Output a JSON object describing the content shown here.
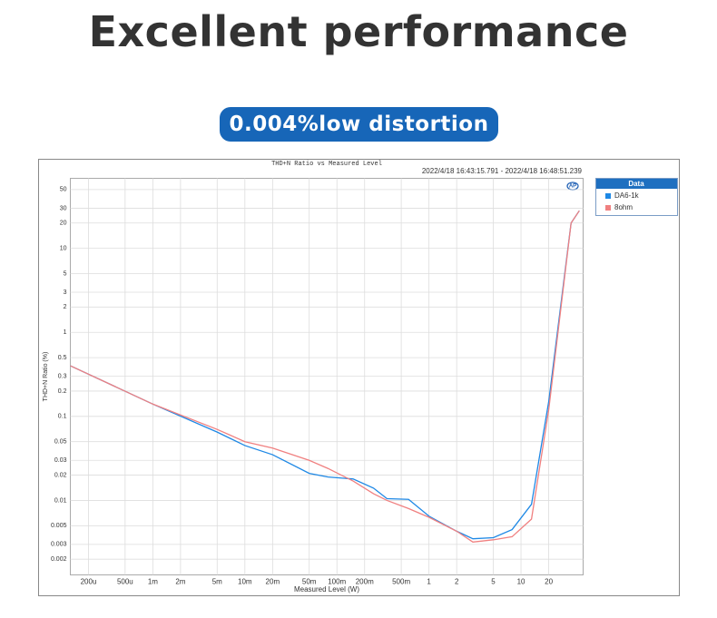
{
  "header": {
    "title": "Excellent performance",
    "badge": "0.004%low distortion"
  },
  "chart_data": {
    "type": "line",
    "title": "THD+N Ratio vs Measured Level",
    "subtitle": "2022/4/18 16:43:15.791 -   2022/4/18 16:48:51.239",
    "x_label": "Measured Level (W)",
    "y_label": "THD+N Ratio (%)",
    "legend_title": "Data",
    "legend_position": "right",
    "xscale": "log",
    "yscale": "log",
    "grid": true,
    "x": [
      0.000127,
      0.001,
      0.005,
      0.01,
      0.02,
      0.05,
      0.08,
      0.15,
      0.25,
      0.35,
      0.6,
      1,
      2,
      3,
      5,
      8,
      13,
      20,
      35,
      43
    ],
    "series": [
      {
        "name": "DA6-1k",
        "color": "#1e88e5",
        "values": [
          0.4,
          0.14,
          0.065,
          0.045,
          0.035,
          0.021,
          0.019,
          0.018,
          0.014,
          0.0105,
          0.0103,
          0.0065,
          0.0043,
          0.0035,
          0.0036,
          0.0045,
          0.009,
          0.15,
          20,
          28
        ]
      },
      {
        "name": "8ohm",
        "color": "#f08080",
        "values": [
          0.4,
          0.14,
          0.07,
          0.05,
          0.042,
          0.03,
          0.024,
          0.017,
          0.012,
          0.01,
          0.008,
          0.0063,
          0.0043,
          0.0032,
          0.0034,
          0.0037,
          0.006,
          0.12,
          20,
          28
        ]
      }
    ],
    "xlim": [
      0.000127,
      47.3
    ],
    "ylim": [
      0.0013,
      68
    ],
    "xticks": [
      {
        "value": 0.0002,
        "label": "200u"
      },
      {
        "value": 0.0005,
        "label": "500u"
      },
      {
        "value": 0.001,
        "label": "1m"
      },
      {
        "value": 0.002,
        "label": "2m"
      },
      {
        "value": 0.005,
        "label": "5m"
      },
      {
        "value": 0.01,
        "label": "10m"
      },
      {
        "value": 0.02,
        "label": "20m"
      },
      {
        "value": 0.05,
        "label": "50m"
      },
      {
        "value": 0.1,
        "label": "100m"
      },
      {
        "value": 0.2,
        "label": "200m"
      },
      {
        "value": 0.5,
        "label": "500m"
      },
      1,
      2,
      5,
      10,
      20
    ],
    "yticks": [
      50,
      30,
      20,
      10,
      5,
      3,
      2,
      1,
      0.5,
      0.3,
      0.2,
      0.1,
      0.05,
      0.03,
      0.02,
      0.01,
      0.005,
      0.003,
      0.002
    ]
  }
}
